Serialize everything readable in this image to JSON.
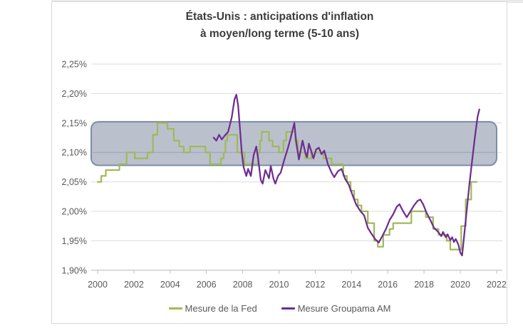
{
  "chart": {
    "title_lines": [
      "États-Unis : anticipations d'inflation",
      "à moyen/long terme (5-10 ans)"
    ]
  },
  "chart_data": {
    "type": "line",
    "title": "États-Unis : anticipations d'inflation à moyen/long terme (5-10 ans)",
    "xlabel": "",
    "ylabel": "",
    "grid": true,
    "legend_position": "bottom",
    "x_axis": {
      "ticks": [
        {
          "v": 2000,
          "label": "2000"
        },
        {
          "v": 2002,
          "label": "2002"
        },
        {
          "v": 2004,
          "label": "2004"
        },
        {
          "v": 2006,
          "label": "2006"
        },
        {
          "v": 2008,
          "label": "2008"
        },
        {
          "v": 2010,
          "label": "2010"
        },
        {
          "v": 2012,
          "label": "2012"
        },
        {
          "v": 2014,
          "label": "2014"
        },
        {
          "v": 2016,
          "label": "2016"
        },
        {
          "v": 2018,
          "label": "2018"
        },
        {
          "v": 2020,
          "label": "2020"
        },
        {
          "v": 2022,
          "label": "2022"
        }
      ],
      "range": [
        2000,
        2022
      ]
    },
    "y_axis": {
      "ticks": [
        {
          "v": 2.25,
          "label": "2,25%"
        },
        {
          "v": 2.2,
          "label": "2,20%"
        },
        {
          "v": 2.15,
          "label": "2,15%"
        },
        {
          "v": 2.1,
          "label": "2,10%"
        },
        {
          "v": 2.05,
          "label": "2,05%"
        },
        {
          "v": 2.0,
          "label": "2,00%"
        },
        {
          "v": 1.95,
          "label": "1,95%"
        },
        {
          "v": 1.9,
          "label": "1,90%"
        }
      ],
      "range": [
        1.9,
        2.25
      ]
    },
    "highlight_band": {
      "from": 2.078,
      "to": 2.152,
      "fill": "#aeb6c4",
      "fill_opacity": 0.85,
      "stroke": "#7c8cab"
    },
    "colors": {
      "gridline": "#dcdcdc",
      "axis": "#c0c0c0",
      "tick_text": "#595959",
      "title_text": "#3c3c3c"
    },
    "series": [
      {
        "name": "Mesure de la Fed",
        "color": "#9fba58",
        "style": "step",
        "points": [
          [
            2000.0,
            2.05
          ],
          [
            2000.2,
            2.06
          ],
          [
            2000.45,
            2.07
          ],
          [
            2001.2,
            2.08
          ],
          [
            2001.6,
            2.1
          ],
          [
            2002.05,
            2.09
          ],
          [
            2002.75,
            2.1
          ],
          [
            2003.05,
            2.13
          ],
          [
            2003.3,
            2.15
          ],
          [
            2003.85,
            2.14
          ],
          [
            2004.2,
            2.12
          ],
          [
            2004.5,
            2.11
          ],
          [
            2004.75,
            2.1
          ],
          [
            2005.1,
            2.11
          ],
          [
            2005.95,
            2.1
          ],
          [
            2006.2,
            2.08
          ],
          [
            2006.8,
            2.09
          ],
          [
            2006.95,
            2.1
          ],
          [
            2007.05,
            2.12
          ],
          [
            2007.15,
            2.13
          ],
          [
            2007.7,
            2.1
          ],
          [
            2008.1,
            2.08
          ],
          [
            2008.85,
            2.1
          ],
          [
            2008.95,
            2.12
          ],
          [
            2009.05,
            2.135
          ],
          [
            2009.45,
            2.12
          ],
          [
            2009.65,
            2.11
          ],
          [
            2010.0,
            2.1
          ],
          [
            2010.25,
            2.12
          ],
          [
            2010.4,
            2.135
          ],
          [
            2010.9,
            2.12
          ],
          [
            2011.05,
            2.1
          ],
          [
            2011.45,
            2.09
          ],
          [
            2011.8,
            2.1
          ],
          [
            2012.45,
            2.09
          ],
          [
            2012.9,
            2.08
          ],
          [
            2013.55,
            2.06
          ],
          [
            2013.75,
            2.05
          ],
          [
            2013.95,
            2.035
          ],
          [
            2014.15,
            2.02
          ],
          [
            2014.35,
            2.01
          ],
          [
            2014.55,
            2.0
          ],
          [
            2014.9,
            1.98
          ],
          [
            2015.25,
            1.95
          ],
          [
            2015.45,
            1.94
          ],
          [
            2015.75,
            1.96
          ],
          [
            2016.1,
            1.97
          ],
          [
            2016.3,
            1.98
          ],
          [
            2017.3,
            2.0
          ],
          [
            2018.1,
            1.99
          ],
          [
            2018.5,
            1.97
          ],
          [
            2018.8,
            1.96
          ],
          [
            2019.25,
            1.95
          ],
          [
            2019.45,
            1.935
          ],
          [
            2020.05,
            1.975
          ],
          [
            2020.3,
            2.02
          ],
          [
            2020.6,
            2.05
          ],
          [
            2020.9,
            2.05
          ]
        ]
      },
      {
        "name": "Mesure Groupama AM",
        "color": "#6e2d91",
        "style": "line",
        "points": [
          [
            2006.4,
            2.125
          ],
          [
            2006.55,
            2.12
          ],
          [
            2006.7,
            2.13
          ],
          [
            2006.85,
            2.122
          ],
          [
            2007.0,
            2.128
          ],
          [
            2007.2,
            2.135
          ],
          [
            2007.4,
            2.16
          ],
          [
            2007.55,
            2.19
          ],
          [
            2007.65,
            2.198
          ],
          [
            2007.75,
            2.18
          ],
          [
            2007.85,
            2.14
          ],
          [
            2007.95,
            2.1
          ],
          [
            2008.05,
            2.075
          ],
          [
            2008.2,
            2.06
          ],
          [
            2008.3,
            2.072
          ],
          [
            2008.45,
            2.06
          ],
          [
            2008.6,
            2.095
          ],
          [
            2008.75,
            2.11
          ],
          [
            2008.85,
            2.09
          ],
          [
            2009.0,
            2.053
          ],
          [
            2009.1,
            2.047
          ],
          [
            2009.25,
            2.07
          ],
          [
            2009.35,
            2.063
          ],
          [
            2009.45,
            2.056
          ],
          [
            2009.55,
            2.077
          ],
          [
            2009.7,
            2.055
          ],
          [
            2009.8,
            2.047
          ],
          [
            2009.95,
            2.06
          ],
          [
            2010.1,
            2.066
          ],
          [
            2010.3,
            2.088
          ],
          [
            2010.5,
            2.108
          ],
          [
            2010.65,
            2.125
          ],
          [
            2010.85,
            2.15
          ],
          [
            2010.95,
            2.117
          ],
          [
            2011.1,
            2.088
          ],
          [
            2011.3,
            2.12
          ],
          [
            2011.45,
            2.1
          ],
          [
            2011.55,
            2.092
          ],
          [
            2011.65,
            2.115
          ],
          [
            2011.8,
            2.1
          ],
          [
            2011.9,
            2.09
          ],
          [
            2012.05,
            2.105
          ],
          [
            2012.2,
            2.108
          ],
          [
            2012.35,
            2.097
          ],
          [
            2012.5,
            2.103
          ],
          [
            2012.7,
            2.08
          ],
          [
            2012.9,
            2.066
          ],
          [
            2013.05,
            2.058
          ],
          [
            2013.25,
            2.068
          ],
          [
            2013.45,
            2.072
          ],
          [
            2013.65,
            2.055
          ],
          [
            2013.85,
            2.045
          ],
          [
            2014.05,
            2.028
          ],
          [
            2014.25,
            2.012
          ],
          [
            2014.5,
            2.0
          ],
          [
            2014.7,
            1.993
          ],
          [
            2014.9,
            1.972
          ],
          [
            2015.1,
            1.962
          ],
          [
            2015.3,
            1.953
          ],
          [
            2015.5,
            1.947
          ],
          [
            2015.7,
            1.958
          ],
          [
            2015.9,
            1.97
          ],
          [
            2016.1,
            1.985
          ],
          [
            2016.3,
            1.995
          ],
          [
            2016.5,
            2.008
          ],
          [
            2016.65,
            2.012
          ],
          [
            2016.85,
            2.0
          ],
          [
            2017.05,
            1.99
          ],
          [
            2017.25,
            2.0
          ],
          [
            2017.45,
            2.01
          ],
          [
            2017.65,
            2.018
          ],
          [
            2017.8,
            2.02
          ],
          [
            2017.95,
            2.012
          ],
          [
            2018.15,
            1.997
          ],
          [
            2018.35,
            1.985
          ],
          [
            2018.55,
            1.972
          ],
          [
            2018.75,
            1.966
          ],
          [
            2018.95,
            1.958
          ],
          [
            2019.05,
            1.965
          ],
          [
            2019.2,
            1.956
          ],
          [
            2019.3,
            1.961
          ],
          [
            2019.45,
            1.951
          ],
          [
            2019.55,
            1.956
          ],
          [
            2019.65,
            1.948
          ],
          [
            2019.75,
            1.953
          ],
          [
            2019.9,
            1.943
          ],
          [
            2020.0,
            1.93
          ],
          [
            2020.1,
            1.925
          ],
          [
            2020.2,
            1.955
          ],
          [
            2020.35,
            2.0
          ],
          [
            2020.5,
            2.045
          ],
          [
            2020.65,
            2.085
          ],
          [
            2020.8,
            2.125
          ],
          [
            2020.95,
            2.16
          ],
          [
            2021.05,
            2.173
          ]
        ]
      }
    ]
  }
}
